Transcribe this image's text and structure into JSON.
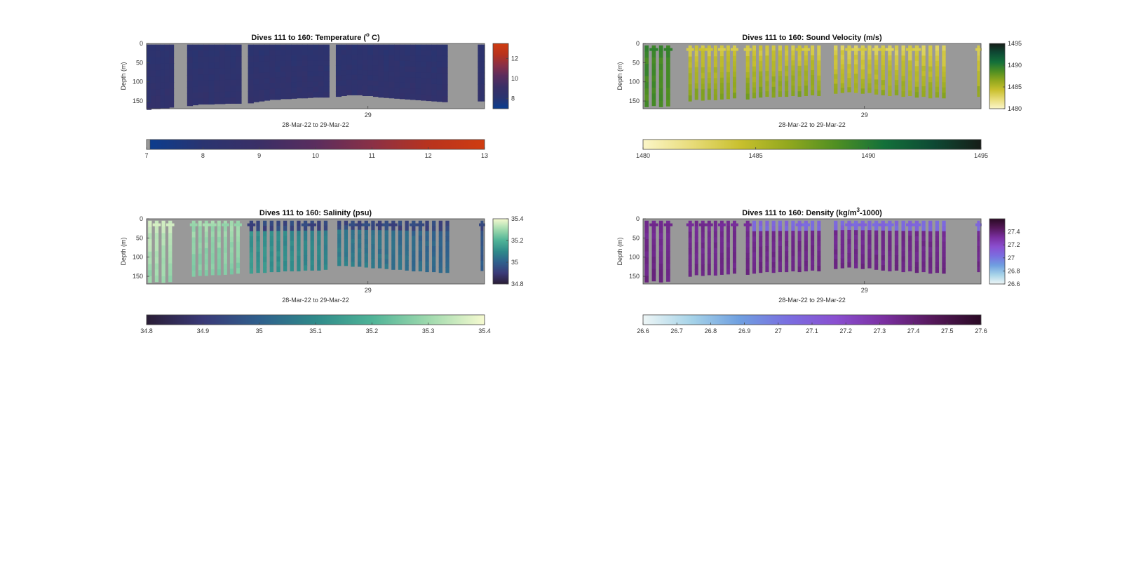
{
  "chart_data": [
    {
      "type": "heatmap",
      "title": "Dives 111 to 160: Temperature (",
      "title_sup": "o",
      "title_tail": " C)",
      "ylabel": "Depth (m)",
      "yticks": [
        "0",
        "50",
        "100",
        "150"
      ],
      "ylim": [
        0,
        170
      ],
      "xtick": "29",
      "xlabel": "28-Mar-22 to 29-Mar-22",
      "colormap": [
        "#0a3d8f",
        "#2a3470",
        "#3a2f66",
        "#5a2d5e",
        "#8a3046",
        "#b8331e",
        "#cf3c10"
      ],
      "inset_colorbar": {
        "ticks": [
          "12",
          "10",
          "8"
        ],
        "range": [
          7,
          13.5
        ],
        "tick_values": [
          12,
          10,
          8
        ]
      },
      "bottom_colorbar": {
        "ticks": [
          "7",
          "8",
          "9",
          "10",
          "11",
          "12",
          "13"
        ],
        "range": [
          7,
          13
        ]
      },
      "field": "temperature",
      "segments": [
        {
          "start": 0.0,
          "end": 0.08,
          "depths": [
            172,
            170,
            170,
            168,
            168,
            166
          ]
        },
        {
          "start": 0.12,
          "end": 0.28,
          "depths": [
            162,
            160,
            158,
            158,
            158,
            157,
            157,
            156,
            156,
            156
          ]
        },
        {
          "start": 0.3,
          "end": 0.54,
          "depths": [
            155,
            152,
            150,
            148,
            146,
            146,
            144,
            144,
            143,
            142,
            142,
            141,
            140,
            140,
            140
          ]
        },
        {
          "start": 0.56,
          "end": 0.89,
          "depths": [
            138,
            136,
            134,
            134,
            134,
            136,
            136,
            138,
            140,
            141,
            142,
            143,
            144,
            145,
            146,
            147,
            148,
            149,
            150,
            151,
            152
          ]
        },
        {
          "start": 0.98,
          "end": 1.0,
          "depths": [
            150,
            150
          ]
        }
      ]
    },
    {
      "type": "heatmap",
      "title": "Dives 111 to 160: Sound Velocity (m/s)",
      "ylabel": "Depth (m)",
      "yticks": [
        "0",
        "50",
        "100",
        "150"
      ],
      "ylim": [
        0,
        170
      ],
      "xtick": "29",
      "xlabel": "28-Mar-22 to 29-Mar-22",
      "colormap": [
        "#fbf6c8",
        "#e8dc7a",
        "#c9c02e",
        "#92a81e",
        "#4f8f22",
        "#13703a",
        "#0e4a34",
        "#161d18"
      ],
      "inset_colorbar": {
        "ticks": [
          "1495",
          "1490",
          "1485",
          "1480"
        ],
        "range": [
          1480,
          1495
        ],
        "tick_values": [
          1495,
          1490,
          1485,
          1480
        ]
      },
      "bottom_colorbar": {
        "ticks": [
          "1480",
          "1485",
          "1490",
          "1495"
        ],
        "range": [
          1480,
          1495
        ]
      },
      "field": "sound",
      "segments": [
        {
          "start": 0.0,
          "end": 0.085,
          "depths": [
            165,
            162,
            165,
            163
          ]
        },
        {
          "start": 0.13,
          "end": 0.28,
          "depths": [
            150,
            146,
            148,
            146,
            147,
            145,
            144,
            142
          ]
        },
        {
          "start": 0.3,
          "end": 0.53,
          "depths": [
            145,
            142,
            140,
            138,
            140,
            138,
            138,
            136,
            138,
            136,
            134,
            136
          ]
        },
        {
          "start": 0.56,
          "end": 0.9,
          "depths": [
            130,
            128,
            126,
            128,
            130,
            128,
            132,
            134,
            136,
            134,
            138,
            136,
            140,
            138,
            142,
            140,
            142
          ]
        },
        {
          "start": 0.985,
          "end": 1.0,
          "depths": [
            138
          ]
        }
      ]
    },
    {
      "type": "heatmap",
      "title": "Dives 111 to 160: Salinity (psu)",
      "ylabel": "Depth (m)",
      "yticks": [
        "0",
        "50",
        "100",
        "150"
      ],
      "ylim": [
        0,
        170
      ],
      "xtick": "29",
      "xlabel": "28-Mar-22 to 29-Mar-22",
      "colormap": [
        "#2a1d36",
        "#3a3a78",
        "#2f5f8c",
        "#2f8a8a",
        "#4fb397",
        "#9ed9ad",
        "#f6fad0"
      ],
      "inset_colorbar": {
        "ticks": [
          "35.4",
          "35.2",
          "35",
          "34.8"
        ],
        "range": [
          34.8,
          35.4
        ],
        "tick_values": [
          35.4,
          35.2,
          35,
          34.8
        ]
      },
      "bottom_colorbar": {
        "ticks": [
          "34.8",
          "34.9",
          "35",
          "35.1",
          "35.2",
          "35.3",
          "35.4"
        ],
        "range": [
          34.8,
          35.4
        ]
      },
      "field": "salinity",
      "segments": [
        {
          "start": 0.0,
          "end": 0.08,
          "depths": [
            166,
            164,
            166,
            164
          ]
        },
        {
          "start": 0.13,
          "end": 0.28,
          "depths": [
            150,
            148,
            148,
            146,
            146,
            145,
            144,
            142
          ]
        },
        {
          "start": 0.3,
          "end": 0.54,
          "depths": [
            142,
            140,
            140,
            138,
            138,
            136,
            136,
            136,
            134,
            134,
            134,
            132
          ]
        },
        {
          "start": 0.56,
          "end": 0.9,
          "depths": [
            122,
            122,
            124,
            124,
            126,
            128,
            128,
            130,
            132,
            132,
            134,
            136,
            136,
            138,
            138,
            140,
            140
          ]
        },
        {
          "start": 0.985,
          "end": 1.0,
          "depths": [
            135
          ]
        }
      ]
    },
    {
      "type": "heatmap",
      "title": "Dives 111 to 160: Density (kg/m",
      "title_sup": "3",
      "title_tail": "-1000)",
      "ylabel": "Depth (m)",
      "yticks": [
        "0",
        "50",
        "100",
        "150"
      ],
      "ylim": [
        0,
        170
      ],
      "xtick": "29",
      "xlabel": "28-Mar-22 to 29-Mar-22",
      "colormap": [
        "#eef6f6",
        "#a6d3e8",
        "#6f9fe0",
        "#7a6ee0",
        "#8a4fd0",
        "#7a2fa0",
        "#55185a",
        "#2a0a24"
      ],
      "inset_colorbar": {
        "ticks": [
          "27.4",
          "27.2",
          "27",
          "26.8",
          "26.6"
        ],
        "range": [
          26.6,
          27.6
        ],
        "tick_values": [
          27.4,
          27.2,
          27,
          26.8,
          26.6
        ]
      },
      "bottom_colorbar": {
        "ticks": [
          "26.6",
          "26.7",
          "26.8",
          "26.9",
          "27",
          "27.1",
          "27.2",
          "27.3",
          "27.4",
          "27.5",
          "27.6"
        ],
        "range": [
          26.6,
          27.6
        ]
      },
      "field": "density",
      "segments": [
        {
          "start": 0.0,
          "end": 0.085,
          "depths": [
            165,
            162,
            165,
            163
          ]
        },
        {
          "start": 0.13,
          "end": 0.28,
          "depths": [
            150,
            146,
            148,
            146,
            147,
            145,
            144,
            142
          ]
        },
        {
          "start": 0.3,
          "end": 0.53,
          "depths": [
            145,
            142,
            140,
            138,
            140,
            138,
            138,
            136,
            138,
            136,
            134,
            136
          ]
        },
        {
          "start": 0.56,
          "end": 0.9,
          "depths": [
            130,
            128,
            126,
            128,
            130,
            128,
            132,
            134,
            136,
            134,
            138,
            136,
            140,
            138,
            142,
            140,
            142
          ]
        },
        {
          "start": 0.985,
          "end": 1.0,
          "depths": [
            138
          ]
        }
      ]
    }
  ]
}
